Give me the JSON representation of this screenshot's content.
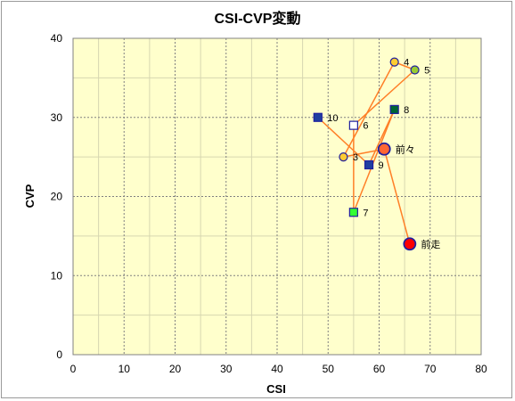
{
  "chart_data": {
    "type": "scatter",
    "title": "CSI-CVP変動",
    "xlabel": "CSI",
    "ylabel": "CVP",
    "xlim": [
      0,
      80
    ],
    "ylim": [
      0,
      40
    ],
    "x_ticks": [
      "0",
      "10",
      "20",
      "30",
      "40",
      "50",
      "60",
      "70",
      "80"
    ],
    "y_ticks": [
      "0",
      "10",
      "20",
      "30",
      "40"
    ],
    "grid": true,
    "background": "#ffffcc",
    "line_color": "#ff7f27",
    "points": [
      {
        "label": "前走",
        "x": 66,
        "y": 14,
        "shape": "circle-large",
        "fill": "#ff0000",
        "stroke": "#1f1f9f"
      },
      {
        "label": "前々",
        "x": 61,
        "y": 26,
        "shape": "circle-large",
        "fill": "#ff6633",
        "stroke": "#1f1f9f"
      },
      {
        "label": "3",
        "x": 53,
        "y": 25,
        "shape": "circle",
        "fill": "#ffcc33",
        "stroke": "#1f1f9f"
      },
      {
        "label": "4",
        "x": 63,
        "y": 37,
        "shape": "circle",
        "fill": "#ffcc33",
        "stroke": "#1f1f9f"
      },
      {
        "label": "5",
        "x": 67,
        "y": 36,
        "shape": "circle",
        "fill": "#99cc33",
        "stroke": "#1f1f9f"
      },
      {
        "label": "6",
        "x": 55,
        "y": 29,
        "shape": "square",
        "fill": "#ffffff",
        "stroke": "#1f1f9f"
      },
      {
        "label": "7",
        "x": 55,
        "y": 18,
        "shape": "square",
        "fill": "#33ff33",
        "stroke": "#1f1f9f"
      },
      {
        "label": "8",
        "x": 63,
        "y": 31,
        "shape": "square",
        "fill": "#006633",
        "stroke": "#1f1f9f"
      },
      {
        "label": "9",
        "x": 58,
        "y": 24,
        "shape": "square",
        "fill": "#1f3fa0",
        "stroke": "#1f1f9f"
      },
      {
        "label": "10",
        "x": 48,
        "y": 30,
        "shape": "square",
        "fill": "#1f3fa0",
        "stroke": "#1f1f9f"
      }
    ]
  }
}
